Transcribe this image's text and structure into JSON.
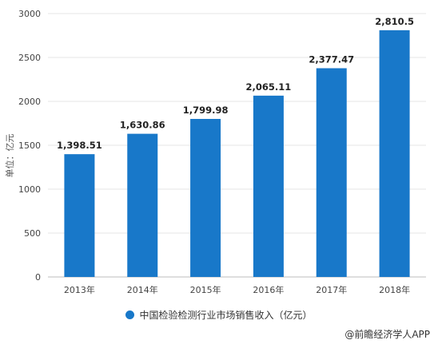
{
  "chart_data": {
    "type": "bar",
    "categories": [
      "2013年",
      "2014年",
      "2015年",
      "2016年",
      "2017年",
      "2018年"
    ],
    "series": [
      {
        "name": "中国检验检测行业市场销售收入（亿元）",
        "values": [
          1398.51,
          1630.86,
          1799.98,
          2065.11,
          2377.47,
          2810.5
        ],
        "labels": [
          "1,398.51",
          "1,630.86",
          "1,799.98",
          "2,065.11",
          "2,377.47",
          "2,810.5"
        ],
        "color": "#1878c9"
      }
    ],
    "ylabel": "单位：亿元",
    "xlabel": "",
    "ylim": [
      0,
      3000
    ],
    "yticks": [
      0,
      500,
      1000,
      1500,
      2000,
      2500,
      3000
    ],
    "grid": true,
    "legend_position": "bottom"
  },
  "source": "@前瞻经济学人APP"
}
